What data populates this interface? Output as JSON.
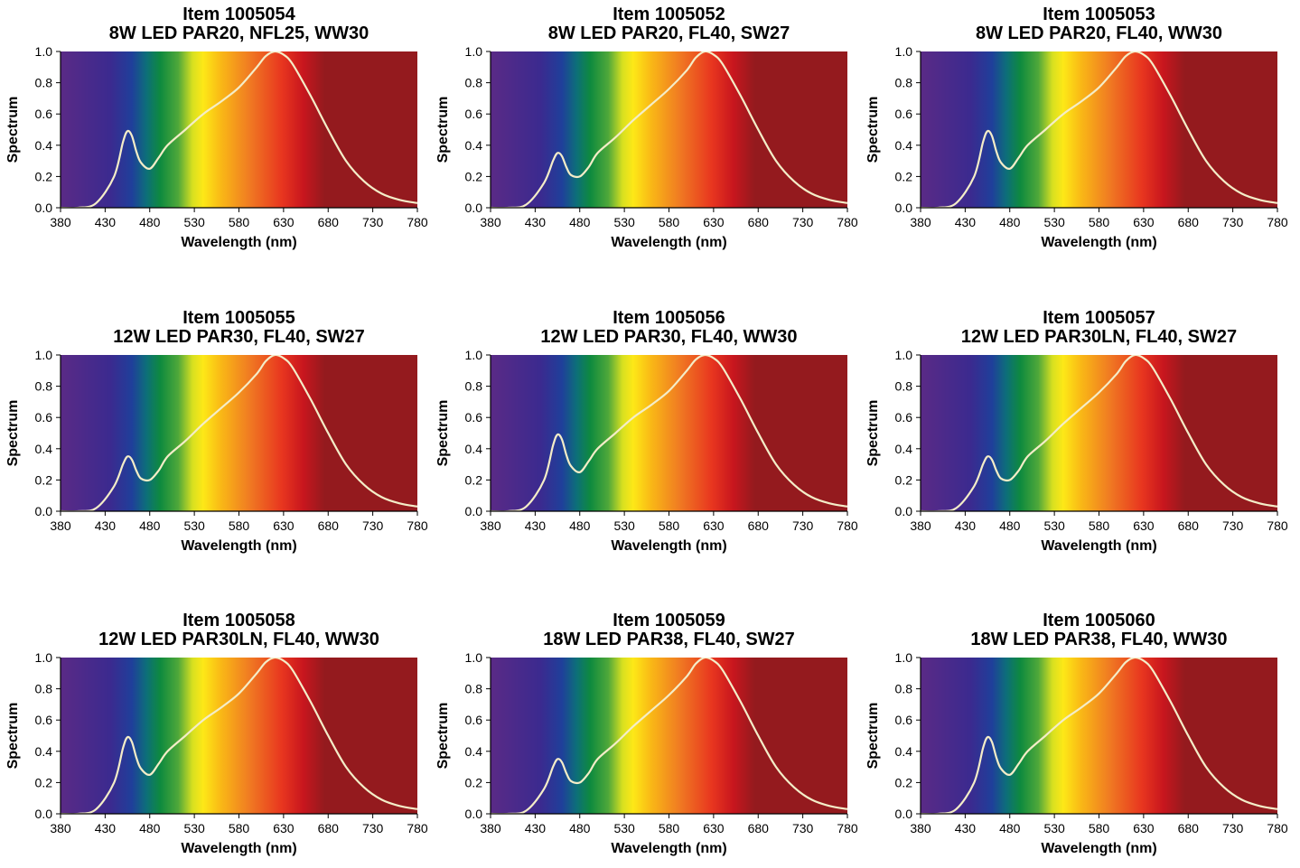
{
  "layout": {
    "columns": 3
  },
  "spectrum_colors": [
    "#5a2a86",
    "#3b2a8f",
    "#1f3f9a",
    "#0d6e7a",
    "#0e8a3e",
    "#4fa83a",
    "#d8e020",
    "#fde817",
    "#f9b816",
    "#f07a22",
    "#e8361f",
    "#c8161e",
    "#941a1e"
  ],
  "curve_color": "#f4edc8",
  "chart_data": [
    {
      "type": "line",
      "title": "Item 1005054",
      "subtitle": "8W LED PAR20, NFL25, WW30",
      "xlabel": "Wavelength (nm)",
      "ylabel": "Spectrum",
      "xlim": [
        380,
        780
      ],
      "ylim": [
        0,
        1
      ],
      "xticks": [
        "380",
        "430",
        "480",
        "530",
        "580",
        "630",
        "680",
        "730",
        "780"
      ],
      "yticks": [
        "0.0",
        "0.2",
        "0.4",
        "0.6",
        "0.8",
        "1.0"
      ],
      "x": [
        380,
        400,
        420,
        440,
        450,
        455,
        460,
        465,
        470,
        480,
        490,
        500,
        520,
        540,
        560,
        580,
        600,
        610,
        620,
        630,
        640,
        660,
        680,
        700,
        720,
        740,
        760,
        780
      ],
      "y": [
        0.0,
        0.0,
        0.03,
        0.2,
        0.42,
        0.49,
        0.46,
        0.36,
        0.29,
        0.25,
        0.32,
        0.4,
        0.5,
        0.6,
        0.68,
        0.77,
        0.9,
        0.97,
        1.0,
        0.98,
        0.92,
        0.72,
        0.5,
        0.3,
        0.17,
        0.09,
        0.05,
        0.03
      ]
    },
    {
      "type": "line",
      "title": "Item 1005052",
      "subtitle": "8W LED PAR20, FL40, SW27",
      "xlabel": "Wavelength (nm)",
      "ylabel": "Spectrum",
      "xlim": [
        380,
        780
      ],
      "ylim": [
        0,
        1
      ],
      "xticks": [
        "380",
        "430",
        "480",
        "530",
        "580",
        "630",
        "680",
        "730",
        "780"
      ],
      "yticks": [
        "0.0",
        "0.2",
        "0.4",
        "0.6",
        "0.8",
        "1.0"
      ],
      "x": [
        380,
        400,
        420,
        440,
        450,
        455,
        460,
        465,
        470,
        480,
        490,
        500,
        520,
        540,
        560,
        580,
        600,
        610,
        620,
        630,
        640,
        660,
        680,
        700,
        720,
        740,
        760,
        780
      ],
      "y": [
        0.0,
        0.0,
        0.02,
        0.16,
        0.3,
        0.35,
        0.33,
        0.26,
        0.21,
        0.2,
        0.26,
        0.35,
        0.45,
        0.56,
        0.66,
        0.76,
        0.88,
        0.96,
        1.0,
        0.98,
        0.92,
        0.72,
        0.5,
        0.3,
        0.17,
        0.09,
        0.05,
        0.03
      ]
    },
    {
      "type": "line",
      "title": "Item 1005053",
      "subtitle": "8W LED PAR20, FL40, WW30",
      "xlabel": "Wavelength (nm)",
      "ylabel": "Spectrum",
      "xlim": [
        380,
        780
      ],
      "ylim": [
        0,
        1
      ],
      "xticks": [
        "380",
        "430",
        "480",
        "530",
        "580",
        "630",
        "680",
        "730",
        "780"
      ],
      "yticks": [
        "0.0",
        "0.2",
        "0.4",
        "0.6",
        "0.8",
        "1.0"
      ],
      "x": [
        380,
        400,
        420,
        440,
        450,
        455,
        460,
        465,
        470,
        480,
        490,
        500,
        520,
        540,
        560,
        580,
        600,
        610,
        620,
        630,
        640,
        660,
        680,
        700,
        720,
        740,
        760,
        780
      ],
      "y": [
        0.0,
        0.0,
        0.03,
        0.2,
        0.42,
        0.49,
        0.46,
        0.36,
        0.29,
        0.25,
        0.32,
        0.4,
        0.5,
        0.6,
        0.68,
        0.77,
        0.9,
        0.97,
        1.0,
        0.98,
        0.92,
        0.72,
        0.5,
        0.3,
        0.17,
        0.09,
        0.05,
        0.03
      ]
    },
    {
      "type": "line",
      "title": "Item 1005055",
      "subtitle": "12W LED PAR30, FL40, SW27",
      "xlabel": "Wavelength (nm)",
      "ylabel": "Spectrum",
      "xlim": [
        380,
        780
      ],
      "ylim": [
        0,
        1
      ],
      "xticks": [
        "380",
        "430",
        "480",
        "530",
        "580",
        "630",
        "680",
        "730",
        "780"
      ],
      "yticks": [
        "0.0",
        "0.2",
        "0.4",
        "0.6",
        "0.8",
        "1.0"
      ],
      "x": [
        380,
        400,
        420,
        440,
        450,
        455,
        460,
        465,
        470,
        480,
        490,
        500,
        520,
        540,
        560,
        580,
        600,
        610,
        620,
        630,
        640,
        660,
        680,
        700,
        720,
        740,
        760,
        780
      ],
      "y": [
        0.0,
        0.0,
        0.02,
        0.16,
        0.3,
        0.35,
        0.33,
        0.26,
        0.21,
        0.2,
        0.26,
        0.35,
        0.45,
        0.56,
        0.66,
        0.76,
        0.88,
        0.96,
        1.0,
        0.98,
        0.92,
        0.72,
        0.5,
        0.3,
        0.17,
        0.09,
        0.05,
        0.03
      ]
    },
    {
      "type": "line",
      "title": "Item 1005056",
      "subtitle": "12W LED PAR30, FL40, WW30",
      "xlabel": "Wavelength (nm)",
      "ylabel": "Spectrum",
      "xlim": [
        380,
        780
      ],
      "ylim": [
        0,
        1
      ],
      "xticks": [
        "380",
        "430",
        "480",
        "530",
        "580",
        "630",
        "680",
        "730",
        "780"
      ],
      "yticks": [
        "0.0",
        "0.2",
        "0.4",
        "0.6",
        "0.8",
        "1.0"
      ],
      "x": [
        380,
        400,
        420,
        440,
        450,
        455,
        460,
        465,
        470,
        480,
        490,
        500,
        520,
        540,
        560,
        580,
        600,
        610,
        620,
        630,
        640,
        660,
        680,
        700,
        720,
        740,
        760,
        780
      ],
      "y": [
        0.0,
        0.0,
        0.03,
        0.2,
        0.42,
        0.49,
        0.46,
        0.36,
        0.29,
        0.25,
        0.32,
        0.4,
        0.5,
        0.6,
        0.68,
        0.77,
        0.9,
        0.97,
        1.0,
        0.98,
        0.92,
        0.72,
        0.5,
        0.3,
        0.17,
        0.09,
        0.05,
        0.03
      ]
    },
    {
      "type": "line",
      "title": "Item 1005057",
      "subtitle": "12W LED PAR30LN, FL40, SW27",
      "xlabel": "Wavelength (nm)",
      "ylabel": "Spectrum",
      "xlim": [
        380,
        780
      ],
      "ylim": [
        0,
        1
      ],
      "xticks": [
        "380",
        "430",
        "480",
        "530",
        "580",
        "630",
        "680",
        "730",
        "780"
      ],
      "yticks": [
        "0.0",
        "0.2",
        "0.4",
        "0.6",
        "0.8",
        "1.0"
      ],
      "x": [
        380,
        400,
        420,
        440,
        450,
        455,
        460,
        465,
        470,
        480,
        490,
        500,
        520,
        540,
        560,
        580,
        600,
        610,
        620,
        630,
        640,
        660,
        680,
        700,
        720,
        740,
        760,
        780
      ],
      "y": [
        0.0,
        0.0,
        0.02,
        0.16,
        0.3,
        0.35,
        0.33,
        0.26,
        0.21,
        0.2,
        0.26,
        0.35,
        0.45,
        0.56,
        0.66,
        0.76,
        0.88,
        0.96,
        1.0,
        0.98,
        0.92,
        0.72,
        0.5,
        0.3,
        0.17,
        0.09,
        0.05,
        0.03
      ]
    },
    {
      "type": "line",
      "title": "Item 1005058",
      "subtitle": "12W LED PAR30LN, FL40, WW30",
      "xlabel": "Wavelength (nm)",
      "ylabel": "Spectrum",
      "xlim": [
        380,
        780
      ],
      "ylim": [
        0,
        1
      ],
      "xticks": [
        "380",
        "430",
        "480",
        "530",
        "580",
        "630",
        "680",
        "730",
        "780"
      ],
      "yticks": [
        "0.0",
        "0.2",
        "0.4",
        "0.6",
        "0.8",
        "1.0"
      ],
      "x": [
        380,
        400,
        420,
        440,
        450,
        455,
        460,
        465,
        470,
        480,
        490,
        500,
        520,
        540,
        560,
        580,
        600,
        610,
        620,
        630,
        640,
        660,
        680,
        700,
        720,
        740,
        760,
        780
      ],
      "y": [
        0.0,
        0.0,
        0.03,
        0.2,
        0.42,
        0.49,
        0.46,
        0.36,
        0.29,
        0.25,
        0.32,
        0.4,
        0.5,
        0.6,
        0.68,
        0.77,
        0.9,
        0.97,
        1.0,
        0.98,
        0.92,
        0.72,
        0.5,
        0.3,
        0.17,
        0.09,
        0.05,
        0.03
      ]
    },
    {
      "type": "line",
      "title": "Item 1005059",
      "subtitle": "18W LED PAR38, FL40, SW27",
      "xlabel": "Wavelength (nm)",
      "ylabel": "Spectrum",
      "xlim": [
        380,
        780
      ],
      "ylim": [
        0,
        1
      ],
      "xticks": [
        "380",
        "430",
        "480",
        "530",
        "580",
        "630",
        "680",
        "730",
        "780"
      ],
      "yticks": [
        "0.0",
        "0.2",
        "0.4",
        "0.6",
        "0.8",
        "1.0"
      ],
      "x": [
        380,
        400,
        420,
        440,
        450,
        455,
        460,
        465,
        470,
        480,
        490,
        500,
        520,
        540,
        560,
        580,
        600,
        610,
        620,
        630,
        640,
        660,
        680,
        700,
        720,
        740,
        760,
        780
      ],
      "y": [
        0.0,
        0.0,
        0.02,
        0.16,
        0.3,
        0.35,
        0.33,
        0.26,
        0.21,
        0.2,
        0.26,
        0.35,
        0.45,
        0.56,
        0.66,
        0.76,
        0.88,
        0.96,
        1.0,
        0.98,
        0.92,
        0.72,
        0.5,
        0.3,
        0.17,
        0.09,
        0.05,
        0.03
      ]
    },
    {
      "type": "line",
      "title": "Item 1005060",
      "subtitle": "18W LED PAR38, FL40, WW30",
      "xlabel": "Wavelength (nm)",
      "ylabel": "Spectrum",
      "xlim": [
        380,
        780
      ],
      "ylim": [
        0,
        1
      ],
      "xticks": [
        "380",
        "430",
        "480",
        "530",
        "580",
        "630",
        "680",
        "730",
        "780"
      ],
      "yticks": [
        "0.0",
        "0.2",
        "0.4",
        "0.6",
        "0.8",
        "1.0"
      ],
      "x": [
        380,
        400,
        420,
        440,
        450,
        455,
        460,
        465,
        470,
        480,
        490,
        500,
        520,
        540,
        560,
        580,
        600,
        610,
        620,
        630,
        640,
        660,
        680,
        700,
        720,
        740,
        760,
        780
      ],
      "y": [
        0.0,
        0.0,
        0.03,
        0.2,
        0.42,
        0.49,
        0.46,
        0.36,
        0.29,
        0.25,
        0.32,
        0.4,
        0.5,
        0.6,
        0.68,
        0.77,
        0.9,
        0.97,
        1.0,
        0.98,
        0.92,
        0.72,
        0.5,
        0.3,
        0.17,
        0.09,
        0.05,
        0.03
      ]
    }
  ]
}
